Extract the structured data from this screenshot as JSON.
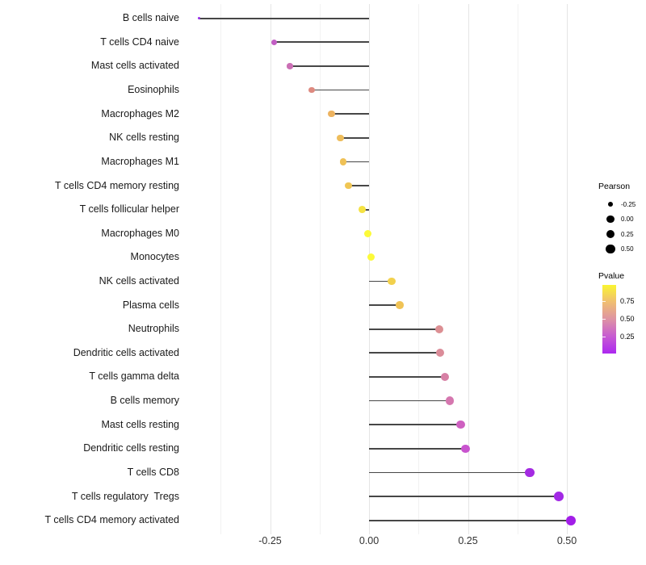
{
  "chart_data": {
    "type": "scatter",
    "subtype": "lollipop",
    "title": "",
    "xlabel": "",
    "ylabel": "",
    "grid": "vertical-only",
    "xlim": [
      -0.477,
      0.557
    ],
    "x_axis": {
      "ticks": [
        {
          "label": "-0.25",
          "value": -0.25
        },
        {
          "label": "0.00",
          "value": 0.0
        },
        {
          "label": "0.25",
          "value": 0.25
        },
        {
          "label": "0.50",
          "value": 0.5
        }
      ],
      "minor_values": [
        -0.375,
        -0.125,
        0.125,
        0.375
      ]
    },
    "rows": [
      {
        "label": "B cells naive",
        "pearson": -0.43,
        "color": "#9932E8"
      },
      {
        "label": "T cells CD4 naive",
        "pearson": -0.24,
        "color": "#C25EC4"
      },
      {
        "label": "Mast cells activated",
        "pearson": -0.2,
        "color": "#CB6FB5"
      },
      {
        "label": "Eosinophils",
        "pearson": -0.145,
        "color": "#DE8A80"
      },
      {
        "label": "Macrophages M2",
        "pearson": -0.095,
        "color": "#EDB360"
      },
      {
        "label": "NK cells resting",
        "pearson": -0.072,
        "color": "#EEBD5B"
      },
      {
        "label": "Macrophages M1",
        "pearson": -0.065,
        "color": "#EFC156"
      },
      {
        "label": "T cells CD4 memory resting",
        "pearson": -0.052,
        "color": "#F0C654"
      },
      {
        "label": "T cells follicular helper",
        "pearson": -0.018,
        "color": "#F5E243"
      },
      {
        "label": "Macrophages M0",
        "pearson": -0.003,
        "color": "#FCFA39"
      },
      {
        "label": "Monocytes",
        "pearson": 0.005,
        "color": "#FCFA39"
      },
      {
        "label": "NK cells activated",
        "pearson": 0.057,
        "color": "#F2D14D"
      },
      {
        "label": "Plasma cells",
        "pearson": 0.078,
        "color": "#F0C356"
      },
      {
        "label": "Neutrophils",
        "pearson": 0.178,
        "color": "#DC8F93"
      },
      {
        "label": "Dendritic cells activated",
        "pearson": 0.18,
        "color": "#DB8C99"
      },
      {
        "label": "T cells gamma delta",
        "pearson": 0.192,
        "color": "#D780A5"
      },
      {
        "label": "B cells memory",
        "pearson": 0.204,
        "color": "#D577AF"
      },
      {
        "label": "Mast cells resting",
        "pearson": 0.232,
        "color": "#CE60C0"
      },
      {
        "label": "Dendritic cells resting",
        "pearson": 0.244,
        "color": "#C854CE"
      },
      {
        "label": "T cells CD8",
        "pearson": 0.406,
        "color": "#A42BE2"
      },
      {
        "label": "T cells regulatory  Tregs",
        "pearson": 0.48,
        "color": "#A229E5"
      },
      {
        "label": "T cells CD4 memory activated",
        "pearson": 0.51,
        "color": "#A21EE8"
      }
    ],
    "legend_size": {
      "title": "Pearson",
      "items": [
        {
          "label": "-0.25",
          "value": -0.25
        },
        {
          "label": "0.00",
          "value": 0.0
        },
        {
          "label": "0.25",
          "value": 0.25
        },
        {
          "label": "0.50",
          "value": 0.5
        }
      ]
    },
    "legend_color": {
      "title": "Pvalue",
      "gradient_stops": [
        "#FAF532",
        "#F0BE72",
        "#DE93A4",
        "#C75BD2",
        "#AC28F0"
      ],
      "ticks": [
        {
          "label": "0.75",
          "pos": 0.235
        },
        {
          "label": "0.50",
          "pos": 0.494
        },
        {
          "label": "0.25",
          "pos": 0.753
        }
      ]
    },
    "segment_color": "#474747",
    "size_legend_circle_color": "#000000"
  }
}
